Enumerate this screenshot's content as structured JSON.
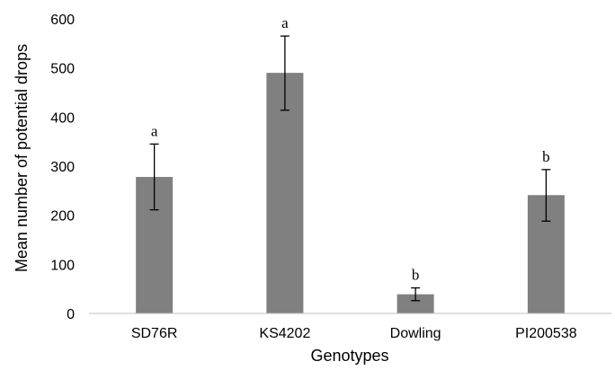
{
  "chart_data": {
    "type": "bar",
    "title": "",
    "xlabel": "Genotypes",
    "ylabel": "Mean number of potential drops",
    "ylim": [
      0,
      600
    ],
    "yticks": [
      0,
      100,
      200,
      300,
      400,
      500,
      600
    ],
    "grid": false,
    "legend": "none",
    "categories": [
      "SD76R",
      "KS4202",
      "Dowling",
      "PI200538"
    ],
    "series": [
      {
        "values": [
          278,
          490,
          39,
          241
        ],
        "error_low": [
          211,
          414,
          26,
          188
        ],
        "error_high": [
          345,
          565,
          52,
          293
        ],
        "labels": [
          "a",
          "a",
          "b",
          "b"
        ]
      }
    ],
    "colors": {
      "bar": "#808080",
      "axis": "#bfbfbf",
      "error_bar": "#000000"
    }
  }
}
